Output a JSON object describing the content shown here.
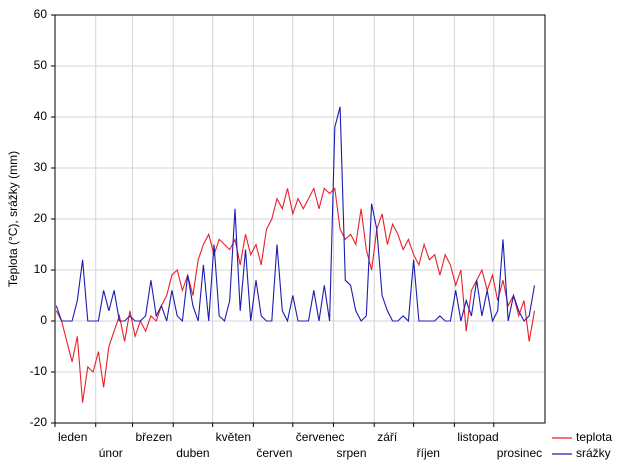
{
  "chart_data": {
    "type": "line",
    "y_label": "Teplota (°C), srážky (mm)",
    "xlim": [
      0,
      373
    ],
    "xticks": [
      {
        "value": 0,
        "label": "leden"
      },
      {
        "value": 31,
        "label": "únor"
      },
      {
        "value": 59,
        "label": "březen"
      },
      {
        "value": 90,
        "label": "duben"
      },
      {
        "value": 120,
        "label": "květen"
      },
      {
        "value": 151,
        "label": "červen"
      },
      {
        "value": 181,
        "label": "červenec"
      },
      {
        "value": 212,
        "label": "srpen"
      },
      {
        "value": 243,
        "label": "září"
      },
      {
        "value": 273,
        "label": "říjen"
      },
      {
        "value": 304,
        "label": "listopad"
      },
      {
        "value": 334,
        "label": "prosinec"
      }
    ],
    "ylim": [
      -20,
      60
    ],
    "yticks": [
      -20,
      -10,
      0,
      10,
      20,
      30,
      40,
      50,
      60
    ],
    "grid": true,
    "legend": "bottom-right",
    "x": [
      1,
      5,
      9,
      13,
      17,
      21,
      25,
      29,
      33,
      37,
      41,
      45,
      49,
      53,
      57,
      61,
      65,
      69,
      73,
      77,
      81,
      85,
      89,
      93,
      97,
      101,
      105,
      109,
      113,
      117,
      121,
      125,
      129,
      133,
      137,
      141,
      145,
      149,
      153,
      157,
      161,
      165,
      169,
      173,
      177,
      181,
      185,
      189,
      193,
      197,
      201,
      205,
      209,
      213,
      217,
      221,
      225,
      229,
      233,
      237,
      241,
      245,
      249,
      253,
      257,
      261,
      265,
      269,
      273,
      277,
      281,
      285,
      289,
      293,
      297,
      301,
      305,
      309,
      313,
      317,
      321,
      325,
      329,
      333,
      337,
      341,
      345,
      349,
      353,
      357,
      361,
      365
    ],
    "series": [
      {
        "name": "teplota",
        "color": "#e8202a",
        "values": [
          2,
          0,
          -4,
          -8,
          -3,
          -16,
          -9,
          -10,
          -6,
          -13,
          -5,
          -2,
          1,
          -4,
          2,
          -3,
          0,
          -2,
          1,
          0,
          3,
          5,
          9,
          10,
          6,
          9,
          5,
          12,
          15,
          17,
          13,
          16,
          15,
          14,
          16,
          11,
          17,
          13,
          15,
          11,
          18,
          20,
          24,
          22,
          26,
          21,
          24,
          22,
          24,
          26,
          22,
          26,
          25,
          26,
          18,
          16,
          17,
          15,
          22,
          14,
          10,
          18,
          21,
          15,
          19,
          17,
          14,
          16,
          13,
          11,
          15,
          12,
          13,
          9,
          13,
          11,
          7,
          10,
          -2,
          6,
          8,
          10,
          6,
          9,
          4,
          8,
          3,
          5,
          1,
          4,
          -4,
          2
        ]
      },
      {
        "name": "srážky",
        "color": "#1c1cb0",
        "values": [
          3,
          0,
          0,
          0,
          4,
          12,
          0,
          0,
          0,
          6,
          2,
          6,
          0,
          0,
          1,
          0,
          0,
          1,
          8,
          1,
          3,
          0,
          6,
          1,
          0,
          9,
          3,
          0,
          11,
          0,
          15,
          1,
          0,
          4,
          22,
          2,
          14,
          0,
          8,
          1,
          0,
          0,
          15,
          2,
          0,
          5,
          0,
          0,
          0,
          6,
          0,
          7,
          0,
          38,
          42,
          8,
          7,
          2,
          0,
          1,
          23,
          18,
          5,
          2,
          0,
          0,
          1,
          0,
          12,
          0,
          0,
          0,
          0,
          1,
          0,
          0,
          6,
          0,
          4,
          1,
          8,
          1,
          6,
          0,
          2,
          16,
          0,
          5,
          2,
          0,
          1,
          7
        ]
      }
    ]
  }
}
